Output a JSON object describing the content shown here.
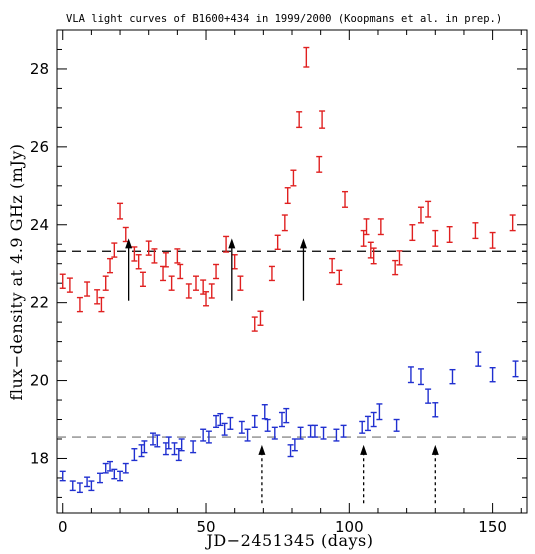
{
  "chart_data": {
    "type": "scatter",
    "title": "VLA light curves of B1600+434 in 1999/2000 (Koopmans et al. in prep.)",
    "xlabel": "JD−2451345 (days)",
    "ylabel": "flux−density at 4.9 GHz (mJy)",
    "xlim": [
      -2,
      162
    ],
    "ylim": [
      16.6,
      29.0
    ],
    "x_ticks": [
      0,
      50,
      100,
      150
    ],
    "x_tick_labels": [
      "0",
      "50",
      "100",
      "150"
    ],
    "y_ticks": [
      18,
      20,
      22,
      24,
      26,
      28
    ],
    "y_tick_labels": [
      "18",
      "20",
      "22",
      "24",
      "26",
      "28"
    ],
    "x_minor_step": 10,
    "y_minor_step": 0.5,
    "grid": false,
    "series": [
      {
        "color": "#e02020",
        "points": [
          [
            0,
            22.55,
            0.18
          ],
          [
            2.5,
            22.45,
            0.18
          ],
          [
            6,
            21.95,
            0.18
          ],
          [
            8.5,
            22.35,
            0.18
          ],
          [
            12,
            22.15,
            0.18
          ],
          [
            13.5,
            21.95,
            0.18
          ],
          [
            15,
            22.5,
            0.18
          ],
          [
            16.5,
            22.95,
            0.18
          ],
          [
            18,
            23.35,
            0.18
          ],
          [
            20,
            24.35,
            0.2
          ],
          [
            22,
            23.75,
            0.18
          ],
          [
            25,
            23.25,
            0.18
          ],
          [
            26.5,
            23.05,
            0.18
          ],
          [
            28,
            22.6,
            0.18
          ],
          [
            30,
            23.4,
            0.18
          ],
          [
            32,
            23.2,
            0.18
          ],
          [
            35,
            22.75,
            0.18
          ],
          [
            36,
            23.1,
            0.18
          ],
          [
            38,
            22.5,
            0.18
          ],
          [
            40,
            23.2,
            0.18
          ],
          [
            41,
            22.8,
            0.18
          ],
          [
            44,
            22.3,
            0.18
          ],
          [
            46.5,
            22.5,
            0.18
          ],
          [
            49,
            22.4,
            0.18
          ],
          [
            50,
            22.1,
            0.18
          ],
          [
            52,
            22.3,
            0.18
          ],
          [
            53.5,
            22.8,
            0.18
          ],
          [
            57,
            23.5,
            0.2
          ],
          [
            60,
            23.05,
            0.18
          ],
          [
            62,
            22.5,
            0.18
          ],
          [
            67,
            21.45,
            0.18
          ],
          [
            69,
            21.6,
            0.18
          ],
          [
            73,
            22.75,
            0.18
          ],
          [
            75,
            23.55,
            0.18
          ],
          [
            77.5,
            24.05,
            0.2
          ],
          [
            78.5,
            24.75,
            0.2
          ],
          [
            80.5,
            25.2,
            0.2
          ],
          [
            82.5,
            26.7,
            0.2
          ],
          [
            85,
            28.3,
            0.25
          ],
          [
            89.5,
            25.55,
            0.2
          ],
          [
            90.5,
            26.7,
            0.22
          ],
          [
            94,
            22.95,
            0.18
          ],
          [
            96.5,
            22.65,
            0.18
          ],
          [
            98.5,
            24.65,
            0.2
          ],
          [
            105,
            23.65,
            0.2
          ],
          [
            106,
            23.95,
            0.2
          ],
          [
            107.5,
            23.35,
            0.2
          ],
          [
            108.5,
            23.2,
            0.2
          ],
          [
            111,
            23.95,
            0.2
          ],
          [
            116,
            22.9,
            0.18
          ],
          [
            117.5,
            23.15,
            0.18
          ],
          [
            122,
            23.8,
            0.2
          ],
          [
            125,
            24.25,
            0.2
          ],
          [
            127.5,
            24.4,
            0.2
          ],
          [
            130,
            23.65,
            0.2
          ],
          [
            135,
            23.75,
            0.2
          ],
          [
            144,
            23.85,
            0.2
          ],
          [
            150,
            23.6,
            0.2
          ],
          [
            157,
            24.05,
            0.2
          ]
        ]
      },
      {
        "color": "#2030d0",
        "points": [
          [
            0,
            17.55,
            0.12
          ],
          [
            3.5,
            17.3,
            0.12
          ],
          [
            6,
            17.25,
            0.12
          ],
          [
            8.5,
            17.4,
            0.12
          ],
          [
            10,
            17.3,
            0.12
          ],
          [
            13,
            17.5,
            0.12
          ],
          [
            15,
            17.75,
            0.12
          ],
          [
            16.5,
            17.8,
            0.12
          ],
          [
            18,
            17.6,
            0.12
          ],
          [
            20,
            17.55,
            0.12
          ],
          [
            22,
            17.75,
            0.12
          ],
          [
            25,
            18.1,
            0.15
          ],
          [
            27.5,
            18.2,
            0.15
          ],
          [
            28.5,
            18.3,
            0.15
          ],
          [
            31.5,
            18.5,
            0.15
          ],
          [
            33,
            18.45,
            0.15
          ],
          [
            36,
            18.25,
            0.15
          ],
          [
            37,
            18.4,
            0.15
          ],
          [
            39,
            18.25,
            0.15
          ],
          [
            40.5,
            18.1,
            0.15
          ],
          [
            41.5,
            18.35,
            0.15
          ],
          [
            45.5,
            18.3,
            0.15
          ],
          [
            49,
            18.6,
            0.15
          ],
          [
            51,
            18.55,
            0.15
          ],
          [
            53.5,
            18.95,
            0.15
          ],
          [
            55,
            19.0,
            0.15
          ],
          [
            56.5,
            18.75,
            0.15
          ],
          [
            58.5,
            18.9,
            0.15
          ],
          [
            62.5,
            18.8,
            0.15
          ],
          [
            64.5,
            18.6,
            0.15
          ],
          [
            67,
            18.95,
            0.15
          ],
          [
            70.5,
            19.2,
            0.18
          ],
          [
            71.5,
            18.85,
            0.15
          ],
          [
            74,
            18.65,
            0.15
          ],
          [
            76.5,
            19.0,
            0.18
          ],
          [
            78,
            19.1,
            0.18
          ],
          [
            79.5,
            18.2,
            0.15
          ],
          [
            81,
            18.35,
            0.15
          ],
          [
            83,
            18.65,
            0.15
          ],
          [
            86.5,
            18.7,
            0.15
          ],
          [
            88,
            18.7,
            0.15
          ],
          [
            91,
            18.65,
            0.15
          ],
          [
            95.5,
            18.6,
            0.15
          ],
          [
            98,
            18.7,
            0.15
          ],
          [
            104.5,
            18.8,
            0.15
          ],
          [
            106.5,
            18.9,
            0.18
          ],
          [
            108.5,
            19.0,
            0.18
          ],
          [
            110.5,
            19.2,
            0.2
          ],
          [
            116.5,
            18.85,
            0.15
          ],
          [
            121.5,
            20.15,
            0.2
          ],
          [
            125,
            20.1,
            0.2
          ],
          [
            127.5,
            19.6,
            0.18
          ],
          [
            130,
            19.25,
            0.18
          ],
          [
            136,
            20.1,
            0.18
          ],
          [
            145,
            20.55,
            0.18
          ],
          [
            150,
            20.15,
            0.18
          ],
          [
            158,
            20.3,
            0.2
          ]
        ]
      }
    ],
    "reference_lines": [
      {
        "y": 23.32,
        "color": "#000000",
        "style": "dashed"
      },
      {
        "y": 18.55,
        "color": "#707070",
        "style": "dashed"
      }
    ],
    "annotations": [
      {
        "type": "arrow",
        "x": 23,
        "y_from": 22.05,
        "y_to": 23.65,
        "style": "solid"
      },
      {
        "type": "arrow",
        "x": 59,
        "y_from": 22.05,
        "y_to": 23.65,
        "style": "solid"
      },
      {
        "type": "arrow",
        "x": 84,
        "y_from": 22.05,
        "y_to": 23.65,
        "style": "solid"
      },
      {
        "type": "arrow",
        "x": 69.5,
        "y_from": 16.85,
        "y_to": 18.35,
        "style": "dashed"
      },
      {
        "type": "arrow",
        "x": 105,
        "y_from": 16.85,
        "y_to": 18.35,
        "style": "dashed"
      },
      {
        "type": "arrow",
        "x": 130,
        "y_from": 16.85,
        "y_to": 18.35,
        "style": "dashed"
      }
    ]
  }
}
